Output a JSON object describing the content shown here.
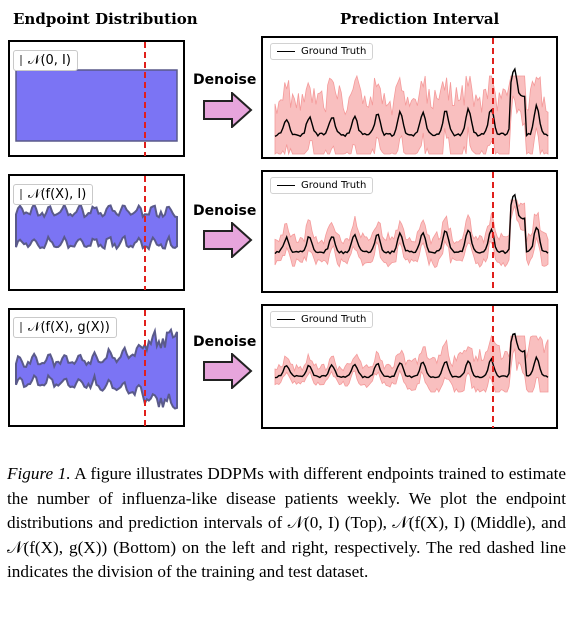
{
  "titles": {
    "left": "Endpoint Distribution",
    "right": "Prediction Interval"
  },
  "rows": [
    {
      "legend": "𝒩(0, I)",
      "denoise": "Denoise",
      "gt_label": "Ground Truth"
    },
    {
      "legend": "𝒩(f(X), I)",
      "denoise": "Denoise",
      "gt_label": "Ground Truth"
    },
    {
      "legend": "𝒩(f(X), g(X))",
      "denoise": "Denoise",
      "gt_label": "Ground Truth"
    }
  ],
  "colors": {
    "distribution_fill": "#7b74f4",
    "distribution_edge": "#5a5a8a",
    "interval_fill": "#f8b4b4",
    "interval_line": "#f49a9a",
    "split_line": "#e0201c",
    "arrow_fill": "#e7a5dc"
  },
  "caption": {
    "label": "Figure 1.",
    "text": " A figure illustrates DDPMs with different endpoints trained to estimate the number of influenza-like disease patients weekly. We plot the endpoint distributions and prediction intervals of 𝒩(0, I) (Top), 𝒩(f(X), I) (Middle), and 𝒩(f(X), g(X)) (Bottom) on the left and right, respectively. The red dashed line indicates the division of the training and test dataset."
  }
}
